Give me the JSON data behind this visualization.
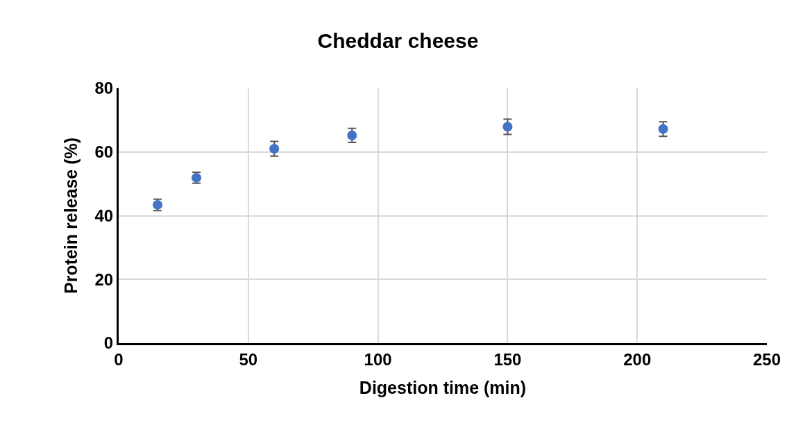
{
  "chart_data": {
    "type": "scatter",
    "title": "Cheddar cheese",
    "xlabel": "Digestion time (min)",
    "ylabel": "Protein release (%)",
    "x": [
      15,
      30,
      60,
      90,
      150,
      210
    ],
    "series": [
      {
        "color": "#4472c4",
        "values": [
          43.4,
          51.9,
          61.0,
          65.2,
          67.9,
          67.2
        ],
        "errors": [
          1.8,
          1.7,
          2.3,
          2.2,
          2.4,
          2.3
        ]
      }
    ],
    "xlim": [
      0,
      250
    ],
    "xticks": [
      0,
      50,
      100,
      150,
      200,
      250
    ],
    "ylim": [
      0,
      80
    ],
    "yticks": [
      0,
      20,
      40,
      60,
      80
    ],
    "grid": true,
    "marker": "circle"
  }
}
